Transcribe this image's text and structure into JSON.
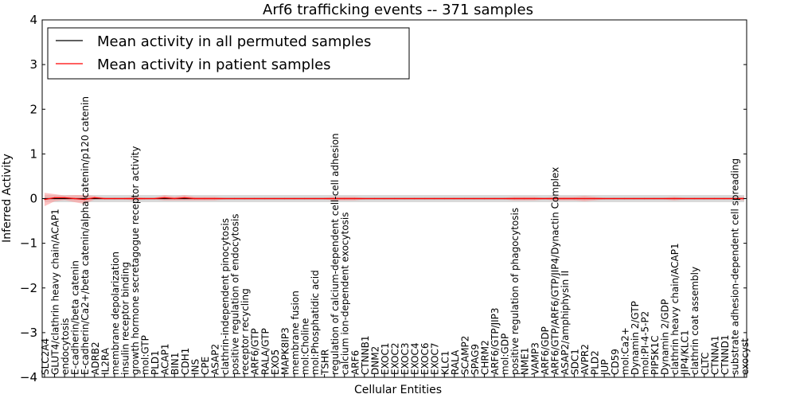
{
  "chart_data": {
    "type": "line",
    "title": "Arf6 trafficking events -- 371 samples",
    "xlabel": "Cellular Entities",
    "ylabel": "Inferred Activity",
    "ylim": [
      -4,
      4
    ],
    "yticks": [
      -4,
      -3,
      -2,
      -1,
      0,
      1,
      2,
      3,
      4
    ],
    "ytick_labels": [
      "−4",
      "−3",
      "−2",
      "−1",
      "0",
      "1",
      "2",
      "3",
      "4"
    ],
    "grid": false,
    "legend_position": "top-left",
    "categories": [
      "SLC2A4",
      "GLUT4/clathrin heavy chain/ACAP1",
      "endocytosis",
      "E-cadherin/beta catenin",
      "E-cadherin/Ca2+/beta catenin/alpha catenin/p120 catenin",
      "ADRB2",
      "IL2RA",
      "membrane depolarization",
      "insulin receptor binding",
      "growth hormone secretagogue receptor activity",
      "mol:GTP",
      "PLD1",
      "ACAP1",
      "BIN1",
      "CDH1",
      "INS",
      "CPE",
      "ASAP2",
      "clathrin-independent pinocytosis",
      "positive regulation of endocytosis",
      "receptor recycling",
      "ARF6/GTP",
      "RALA/GTP",
      "EXO5",
      "MAPK8IP3",
      "membrane fusion",
      "mol:Choline",
      "mol:Phosphatidic acid",
      "TSHR",
      "regulation of calcium-dependent cell-cell adhesion",
      "calcium ion-dependent exocytosis",
      "ARF6",
      "CTNNB1",
      "DNM2",
      "EXOC1",
      "EXOC2",
      "EXOC3",
      "EXOC4",
      "EXOC6",
      "EXOC7",
      "KLC1",
      "RALA",
      "SCAMP2",
      "SPAG9",
      "CHRM2",
      "ARF6/GTP/JIP3",
      "mol:GDP",
      "positive regulation of phagocytosis",
      "NME1",
      "VAMP3",
      "ARF6/GDP",
      "ARF6/GTP/ARF6/GTP/JIP4/Dynactin Complex",
      "ASAP2/amphiphysin II",
      "SDC1",
      "AVPR2",
      "PLD2",
      "JUP",
      "CD59",
      "mol:Ca2+",
      "Dynamin 2/GTP",
      "mol:PI-4-5-P2",
      "PIP5K1C",
      "Dynamin 2/GDP",
      "clathrin heavy chain/ACAP1",
      "JIP4/KLC1",
      "clathrin coat assembly",
      "CLTC",
      "CTNNA1",
      "CTNND1",
      "substrate adhesion-dependent cell spreading",
      "exocyst"
    ],
    "series": [
      {
        "name": "Mean activity in all permuted samples",
        "color": "#000000",
        "values": [
          0.0,
          0.0,
          0.0,
          0.0,
          0.0,
          0.0,
          0.0,
          0.0,
          0.0,
          0.0,
          0.0,
          0.0,
          0.0,
          0.0,
          0.0,
          0.0,
          0.0,
          0.0,
          0.0,
          0.0,
          0.0,
          0.0,
          0.0,
          0.0,
          0.0,
          0.0,
          0.0,
          0.0,
          0.0,
          0.0,
          0.0,
          0.0,
          0.0,
          0.0,
          0.0,
          0.0,
          0.0,
          0.0,
          0.0,
          0.0,
          0.0,
          0.0,
          0.0,
          0.0,
          0.0,
          0.0,
          0.0,
          0.0,
          0.0,
          0.0,
          0.0,
          0.0,
          0.0,
          0.0,
          0.0,
          0.0,
          0.0,
          0.0,
          0.0,
          0.0,
          0.0,
          0.0,
          0.0,
          0.0,
          0.0,
          0.0,
          0.0,
          0.0,
          0.0,
          0.0,
          0.0
        ],
        "band": 0.08,
        "band_color": "#cccccc"
      },
      {
        "name": "Mean activity in patient samples",
        "color": "#ff0000",
        "values": [
          -0.02,
          0.02,
          0.02,
          0.0,
          -0.02,
          0.02,
          0.0,
          0.0,
          0.0,
          0.0,
          0.0,
          0.0,
          0.02,
          0.0,
          0.02,
          0.0,
          0.0,
          0.0,
          0.0,
          0.0,
          0.0,
          0.0,
          0.0,
          0.0,
          0.0,
          0.0,
          0.0,
          0.0,
          0.0,
          0.0,
          0.0,
          0.0,
          0.0,
          0.0,
          0.0,
          0.0,
          0.0,
          0.0,
          0.0,
          0.0,
          0.0,
          0.0,
          0.0,
          0.0,
          0.0,
          0.0,
          0.0,
          0.0,
          0.0,
          0.0,
          0.0,
          0.0,
          0.0,
          0.0,
          0.0,
          0.0,
          0.0,
          0.0,
          0.0,
          0.0,
          0.0,
          0.0,
          0.0,
          0.0,
          0.0,
          0.0,
          0.0,
          0.0,
          0.0,
          0.0,
          0.0
        ],
        "band_values": [
          0.15,
          0.08,
          0.05,
          0.08,
          0.1,
          0.04,
          0.02,
          0.02,
          0.02,
          0.04,
          0.02,
          0.02,
          0.06,
          0.04,
          0.06,
          0.04,
          0.04,
          0.04,
          0.02,
          0.02,
          0.02,
          0.02,
          0.02,
          0.02,
          0.02,
          0.02,
          0.02,
          0.02,
          0.02,
          0.04,
          0.04,
          0.04,
          0.02,
          0.02,
          0.02,
          0.02,
          0.02,
          0.02,
          0.02,
          0.02,
          0.02,
          0.02,
          0.02,
          0.02,
          0.02,
          0.02,
          0.02,
          0.04,
          0.04,
          0.04,
          0.02,
          0.04,
          0.04,
          0.04,
          0.06,
          0.04,
          0.02,
          0.02,
          0.02,
          0.02,
          0.02,
          0.02,
          0.02,
          0.04,
          0.02,
          0.02,
          0.02,
          0.02,
          0.02,
          0.02,
          0.04
        ],
        "band_color": "#ff9999"
      }
    ]
  }
}
